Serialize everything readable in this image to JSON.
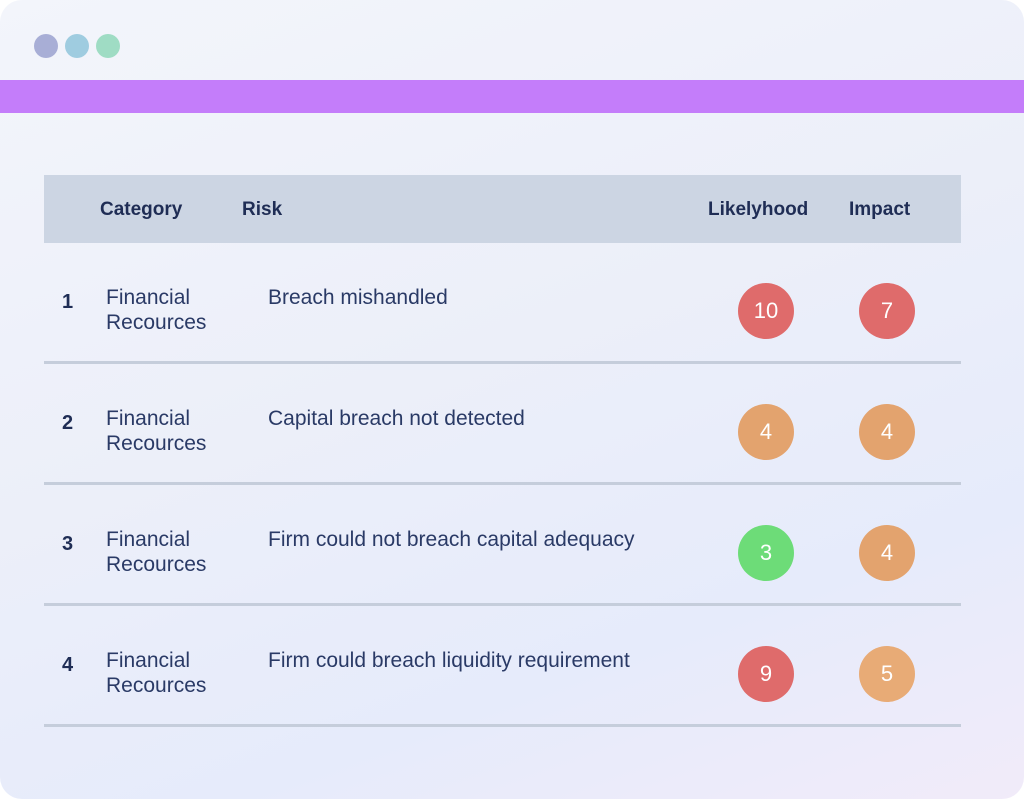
{
  "window": {
    "dots": [
      {
        "name": "window-dot-1",
        "color": "#a8aed6"
      },
      {
        "name": "window-dot-2",
        "color": "#9fcce0"
      },
      {
        "name": "window-dot-3",
        "color": "#9fdcc4"
      }
    ],
    "accent_color": "#c47dfa"
  },
  "table": {
    "headers": {
      "category": "Category",
      "risk": "Risk",
      "likelihood": "Likelyhood",
      "impact": "Impact"
    },
    "rows": [
      {
        "num": "1",
        "category_line1": "Financial",
        "category_line2": "Recources",
        "risk": "Breach mishandled",
        "likelihood": "10",
        "likelihood_color": "#df6b6b",
        "impact": "7",
        "impact_color": "#df6b6b"
      },
      {
        "num": "2",
        "category_line1": "Financial",
        "category_line2": "Recources",
        "risk": "Capital breach not detected",
        "likelihood": "4",
        "likelihood_color": "#e3a36e",
        "impact": "4",
        "impact_color": "#e3a36e"
      },
      {
        "num": "3",
        "category_line1": "Financial",
        "category_line2": "Recources",
        "risk": "Firm could not breach capital adequacy",
        "likelihood": "3",
        "likelihood_color": "#6ddc78",
        "impact": "4",
        "impact_color": "#e3a36e"
      },
      {
        "num": "4",
        "category_line1": "Financial",
        "category_line2": "Recources",
        "risk": "Firm could breach liquidity requirement",
        "likelihood": "9",
        "likelihood_color": "#df6b6b",
        "impact": "5",
        "impact_color": "#e8ab76"
      }
    ]
  }
}
